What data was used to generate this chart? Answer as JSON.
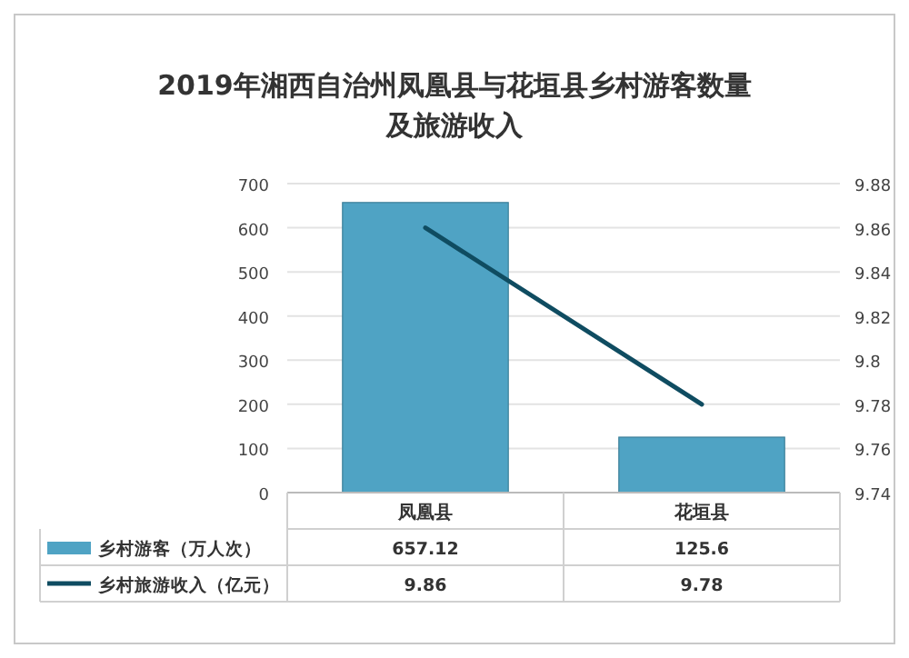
{
  "chart_data": {
    "type": "bar",
    "title": "2019年湘西自治州凤凰县与花垣县乡村游客数量及旅游收入",
    "categories": [
      "凤凰县",
      "花垣县"
    ],
    "series": [
      {
        "name": "乡村游客（万人次）",
        "color": "#4fa3c4",
        "values": [
          657.12,
          125.6
        ]
      },
      {
        "name": "乡村旅游收入（亿元）",
        "type": "line",
        "axis": "y2",
        "color": "#0f4c61",
        "values": [
          9.86,
          9.78
        ]
      }
    ],
    "ylim": [
      0,
      700
    ],
    "yticks": [
      0,
      100,
      200,
      300,
      400,
      500,
      600,
      700
    ],
    "y2lim": [
      9.74,
      9.88
    ],
    "y2ticks": [
      9.74,
      9.76,
      9.78,
      9.8,
      9.82,
      9.84,
      9.86,
      9.88
    ],
    "grid": "y",
    "legend": "bottom",
    "data_labels": true
  }
}
